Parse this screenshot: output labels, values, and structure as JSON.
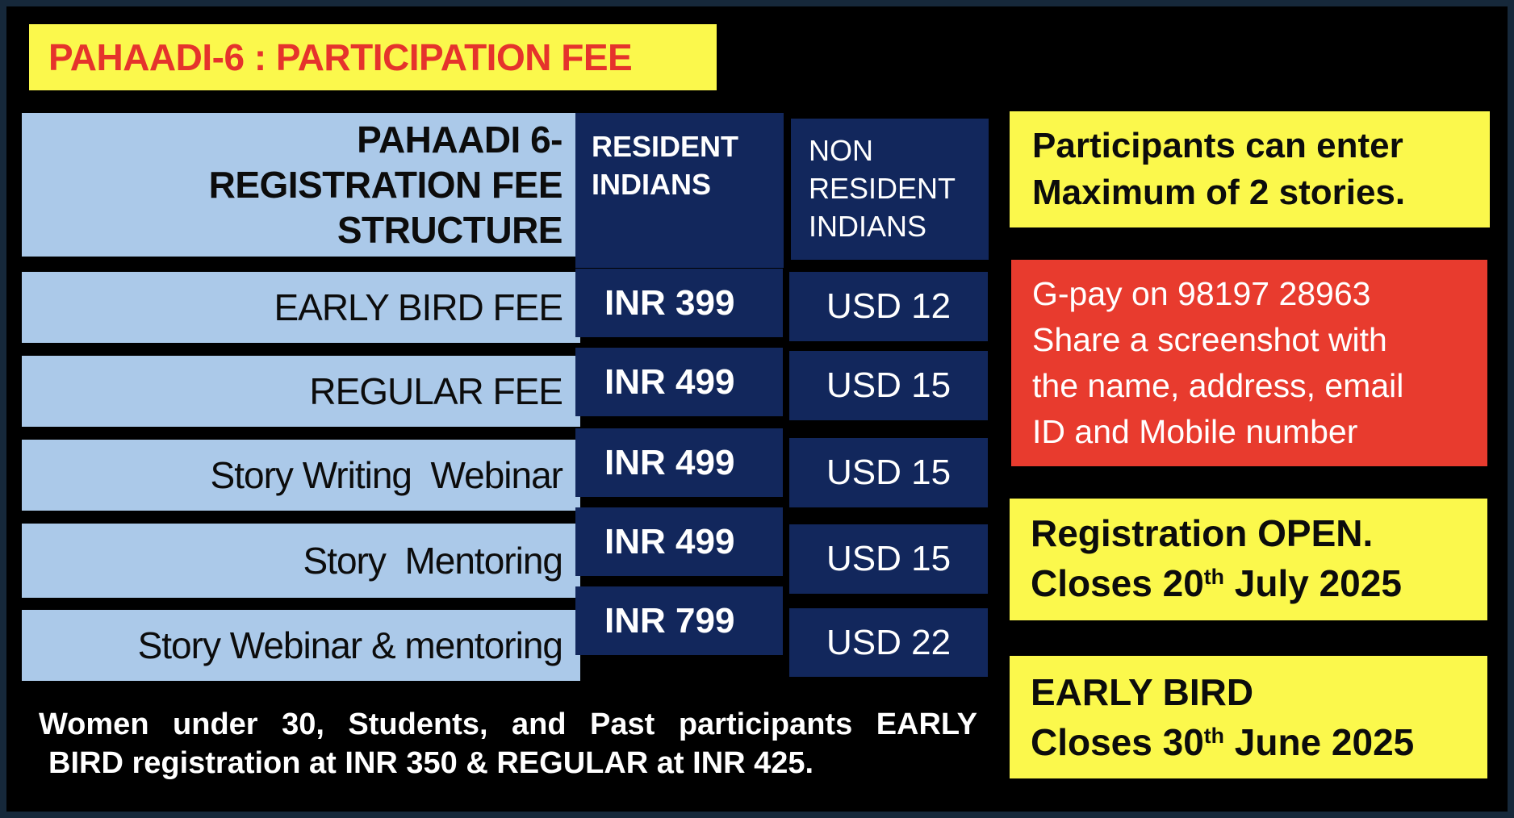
{
  "title_banner": {
    "text": "PAHAADI-6 : PARTICIPATION FEE",
    "bg": "#fbf84c",
    "text_color": "#e5332c"
  },
  "fee_table": {
    "row_header": {
      "lines": [
        "PAHAADI 6-",
        "REGISTRATION FEE",
        "STRUCTURE"
      ],
      "bg": "#abc9e9"
    },
    "col_resident": {
      "lines": [
        "RESIDENT",
        "INDIANS"
      ],
      "bg": "#12275c"
    },
    "col_non_resident": {
      "lines": [
        "NON",
        "RESIDENT",
        "INDIANS"
      ],
      "bg": "#12275c"
    },
    "rows": [
      {
        "label": "EARLY BIRD FEE",
        "inr": "INR 399",
        "usd": "USD 12"
      },
      {
        "label": "REGULAR FEE",
        "inr": "INR 499",
        "usd": "USD 15"
      },
      {
        "label": "Story Writing  Webinar",
        "inr": "INR 499",
        "usd": "USD 15"
      },
      {
        "label": "Story  Mentoring",
        "inr": "INR 499",
        "usd": "USD 15"
      },
      {
        "label": "Story Webinar & mentoring",
        "inr": "INR 799",
        "usd": "USD 22"
      }
    ]
  },
  "concession_note": {
    "line1": "Women under 30, Students, and Past participants EARLY",
    "line2": "BIRD registration at INR 350 & REGULAR at INR 425."
  },
  "side_panels": {
    "stories_limit": {
      "line1": "Participants can enter",
      "line2": "Maximum of 2 stories.",
      "bg": "#fbf84c"
    },
    "payment": {
      "lines": [
        "G-pay on 98197 28963",
        "Share a screenshot with",
        "the name, address, email",
        "ID and Mobile number"
      ],
      "bg": "#e83b2e"
    },
    "registration_window": {
      "line1": "Registration OPEN.",
      "closes_prefix": "Closes 20",
      "closes_sup": "th",
      "closes_suffix": " July 2025",
      "bg": "#fbf84c"
    },
    "early_bird_window": {
      "line1": "EARLY BIRD",
      "closes_prefix": "Closes 30",
      "closes_sup": "th",
      "closes_suffix": " June 2025",
      "bg": "#fbf84c"
    }
  },
  "colors": {
    "background": "#000000",
    "frame_border": "#16283a",
    "yellow": "#fbf84c",
    "red_box": "#e83b2e",
    "red_title_text": "#e5332c",
    "light_blue": "#abc9e9",
    "navy": "#12275c",
    "white": "#ffffff"
  }
}
